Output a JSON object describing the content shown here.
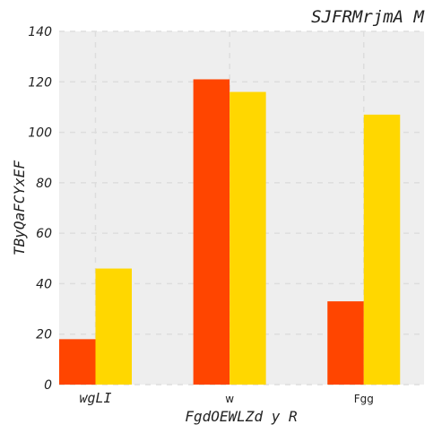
{
  "chart_data": {
    "type": "bar",
    "title": "SJFRMrjmA M",
    "xlabel": "FgdOEWLZd y R",
    "ylabel": "TByQaFCYxEF",
    "categories": [
      "wgLI",
      "w",
      "Fgg"
    ],
    "series": [
      {
        "values": [
          18,
          121,
          33
        ],
        "color": "#ff4500"
      },
      {
        "values": [
          46,
          116,
          107
        ],
        "color": "#ffd700"
      }
    ],
    "ylim": [
      0,
      140
    ],
    "yticks": [
      0,
      20,
      40,
      60,
      80,
      100,
      120,
      140
    ],
    "grid": true,
    "plot_background": "#eeeeee",
    "grid_color": "#dddddd"
  }
}
